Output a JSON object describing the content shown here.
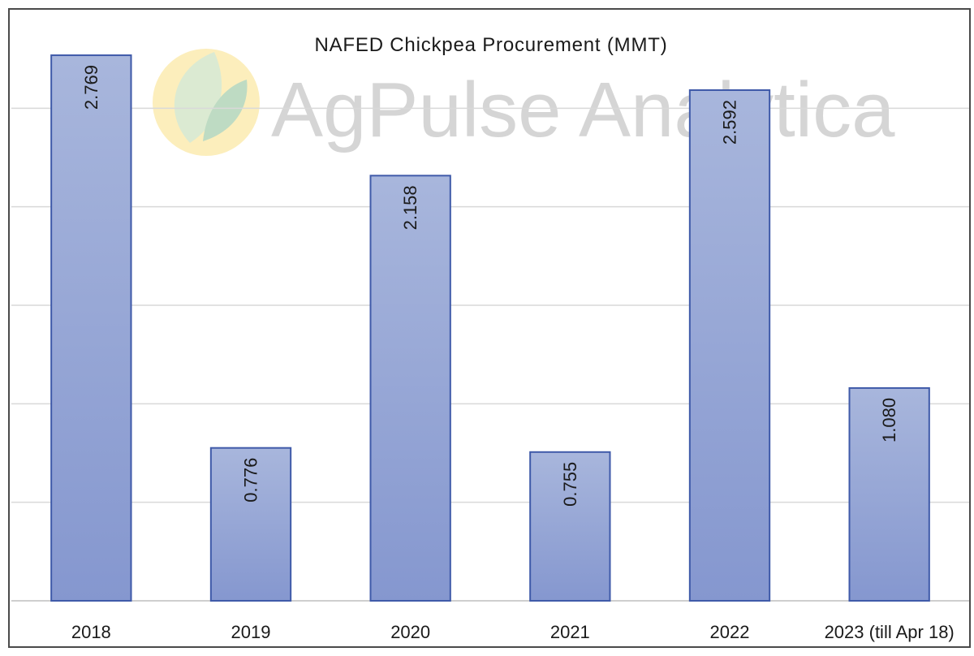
{
  "watermark": {
    "text": "AgPulse Analytica"
  },
  "chart_data": {
    "type": "bar",
    "title": "NAFED Chickpea Procurement (MMT)",
    "xlabel": "",
    "ylabel": "",
    "categories": [
      "2018",
      "2019",
      "2020",
      "2021",
      "2022",
      "2023 (till Apr 18)"
    ],
    "values": [
      2.769,
      0.776,
      2.158,
      0.755,
      2.592,
      1.08
    ],
    "data_labels": [
      "2.769",
      "0.776",
      "2.158",
      "0.755",
      "2.592",
      "1.080"
    ],
    "ylim": [
      0,
      3
    ],
    "grid": true,
    "legend": "none",
    "colors": {
      "bar_top": "#a8b6dc",
      "bar_bottom": "#8597cf",
      "bar_border": "#3f5aa9"
    }
  }
}
